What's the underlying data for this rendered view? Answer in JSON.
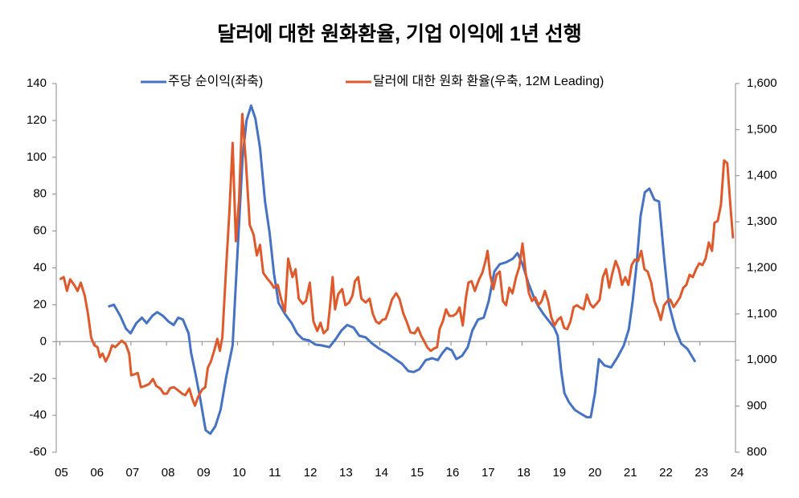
{
  "chart_data": {
    "type": "line",
    "title": "달러에 대한 원화환율, 기업 이익에 1년 선행",
    "xlim": [
      2004.9,
      2024.0
    ],
    "xticks": [
      {
        "value": 2005,
        "label": "05"
      },
      {
        "value": 2006,
        "label": "06"
      },
      {
        "value": 2007,
        "label": "07"
      },
      {
        "value": 2008,
        "label": "08"
      },
      {
        "value": 2009,
        "label": "09"
      },
      {
        "value": 2010,
        "label": "10"
      },
      {
        "value": 2011,
        "label": "11"
      },
      {
        "value": 2012,
        "label": "12"
      },
      {
        "value": 2013,
        "label": "13"
      },
      {
        "value": 2014,
        "label": "14"
      },
      {
        "value": 2015,
        "label": "15"
      },
      {
        "value": 2016,
        "label": "16"
      },
      {
        "value": 2017,
        "label": "17"
      },
      {
        "value": 2018,
        "label": "18"
      },
      {
        "value": 2019,
        "label": "19"
      },
      {
        "value": 2020,
        "label": "20"
      },
      {
        "value": 2021,
        "label": "21"
      },
      {
        "value": 2022,
        "label": "22"
      },
      {
        "value": 2023,
        "label": "23"
      },
      {
        "value": 2024,
        "label": "24"
      }
    ],
    "ylim": [
      -60,
      140
    ],
    "yticks": [
      -60,
      -40,
      -20,
      0,
      20,
      40,
      60,
      80,
      100,
      120,
      140
    ],
    "y2lim": [
      800,
      1600
    ],
    "y2ticks": [
      800,
      900,
      {
        "value": 1000,
        "label": "1,000"
      },
      {
        "value": 1100,
        "label": "1,100"
      },
      {
        "value": 1200,
        "label": "1,200"
      },
      {
        "value": 1300,
        "label": "1,300"
      },
      {
        "value": 1400,
        "label": "1,400"
      },
      {
        "value": 1500,
        "label": "1,500"
      },
      {
        "value": 1600,
        "label": "1,600"
      }
    ],
    "grid": false,
    "legend": "top",
    "series": [
      {
        "name": "주당 순이익(좌축)",
        "color": "#4472c4",
        "axis": "y",
        "x": [
          2006.36,
          2006.52,
          2006.7,
          2006.86,
          2006.99,
          2007.15,
          2007.31,
          2007.44,
          2007.6,
          2007.74,
          2007.9,
          2008.05,
          2008.2,
          2008.33,
          2008.46,
          2008.62,
          2008.69,
          2008.8,
          2008.94,
          2009.1,
          2009.23,
          2009.37,
          2009.52,
          2009.68,
          2009.86,
          2009.98,
          2010.14,
          2010.25,
          2010.38,
          2010.5,
          2010.63,
          2010.77,
          2010.9,
          2011.02,
          2011.15,
          2011.33,
          2011.52,
          2011.67,
          2011.83,
          2012.01,
          2012.19,
          2012.35,
          2012.58,
          2012.76,
          2012.92,
          2013.08,
          2013.26,
          2013.42,
          2013.6,
          2013.78,
          2013.98,
          2014.21,
          2014.43,
          2014.62,
          2014.8,
          2014.95,
          2015.11,
          2015.29,
          2015.47,
          2015.63,
          2015.75,
          2015.88,
          2016.02,
          2016.15,
          2016.31,
          2016.47,
          2016.6,
          2016.76,
          2016.92,
          2017.06,
          2017.22,
          2017.37,
          2017.55,
          2017.74,
          2017.87,
          2018.01,
          2018.17,
          2018.33,
          2018.46,
          2018.6,
          2018.76,
          2018.9,
          2019.0,
          2019.1,
          2019.19,
          2019.32,
          2019.48,
          2019.64,
          2019.82,
          2019.93,
          2020.05,
          2020.16,
          2020.32,
          2020.5,
          2020.68,
          2020.86,
          2021.0,
          2021.11,
          2021.22,
          2021.33,
          2021.45,
          2021.58,
          2021.72,
          2021.85,
          2021.99,
          2022.13,
          2022.31,
          2022.47,
          2022.65,
          2022.87
        ],
        "values": [
          19,
          20,
          14,
          7,
          4.5,
          10,
          13,
          10,
          14,
          16,
          14,
          11,
          9,
          13,
          12,
          4.5,
          -6,
          -16,
          -30,
          -48,
          -50,
          -46,
          -37,
          -19,
          -2,
          42,
          100,
          120,
          128,
          121,
          105,
          76,
          59,
          37,
          21,
          15,
          10,
          4.5,
          1.4,
          0.6,
          -1.6,
          -2,
          -3,
          1.4,
          6,
          9,
          7.6,
          3.2,
          2.3,
          -1,
          -3.8,
          -6.4,
          -9.5,
          -12,
          -16,
          -16.5,
          -15,
          -10,
          -9,
          -10,
          -6.4,
          -3.4,
          -4.7,
          -9.5,
          -7.7,
          -3,
          6,
          12,
          13,
          22,
          38,
          42,
          43,
          45,
          48,
          42,
          32,
          24,
          19,
          15,
          11,
          7.6,
          3.2,
          -16,
          -28,
          -33,
          -37,
          -39,
          -41,
          -41,
          -28,
          -9.5,
          -13,
          -14,
          -8.6,
          -2,
          6.7,
          22,
          42,
          68,
          81,
          83,
          77,
          76,
          46,
          20,
          6.7,
          -1,
          -4,
          -11
        ]
      },
      {
        "name": "달러에 대한 원화 환율(우축, 12M Leading)",
        "color": "#e0592a",
        "axis": "y2",
        "x": [
          2005.0,
          2005.11,
          2005.2,
          2005.29,
          2005.41,
          2005.5,
          2005.59,
          2005.7,
          2005.79,
          2005.88,
          2005.97,
          2006.06,
          2006.13,
          2006.2,
          2006.29,
          2006.38,
          2006.47,
          2006.56,
          2006.65,
          2006.74,
          2006.85,
          2006.95,
          2007.01,
          2007.1,
          2007.19,
          2007.28,
          2007.4,
          2007.51,
          2007.62,
          2007.71,
          2007.83,
          2007.92,
          2008.01,
          2008.1,
          2008.21,
          2008.33,
          2008.44,
          2008.53,
          2008.64,
          2008.73,
          2008.8,
          2008.89,
          2009.0,
          2009.09,
          2009.16,
          2009.25,
          2009.34,
          2009.43,
          2009.5,
          2009.57,
          2009.68,
          2009.77,
          2009.86,
          2009.95,
          2010.04,
          2010.13,
          2010.23,
          2010.34,
          2010.45,
          2010.54,
          2010.63,
          2010.72,
          2010.84,
          2010.93,
          2011.02,
          2011.13,
          2011.22,
          2011.33,
          2011.42,
          2011.54,
          2011.63,
          2011.72,
          2011.83,
          2011.92,
          2012.03,
          2012.13,
          2012.24,
          2012.33,
          2012.42,
          2012.53,
          2012.6,
          2012.67,
          2012.74,
          2012.83,
          2012.94,
          2013.03,
          2013.14,
          2013.23,
          2013.3,
          2013.39,
          2013.48,
          2013.6,
          2013.71,
          2013.8,
          2013.89,
          2013.98,
          2014.07,
          2014.16,
          2014.25,
          2014.34,
          2014.46,
          2014.55,
          2014.66,
          2014.75,
          2014.86,
          2014.98,
          2015.07,
          2015.16,
          2015.25,
          2015.34,
          2015.43,
          2015.52,
          2015.61,
          2015.68,
          2015.77,
          2015.86,
          2015.95,
          2016.06,
          2016.15,
          2016.24,
          2016.33,
          2016.42,
          2016.49,
          2016.58,
          2016.67,
          2016.79,
          2016.88,
          2016.97,
          2017.03,
          2017.1,
          2017.19,
          2017.28,
          2017.37,
          2017.46,
          2017.55,
          2017.64,
          2017.73,
          2017.83,
          2017.92,
          2018.01,
          2018.1,
          2018.19,
          2018.28,
          2018.37,
          2018.46,
          2018.55,
          2018.64,
          2018.73,
          2018.82,
          2018.91,
          2019.0,
          2019.09,
          2019.18,
          2019.27,
          2019.36,
          2019.45,
          2019.54,
          2019.63,
          2019.73,
          2019.82,
          2019.91,
          2020.0,
          2020.09,
          2020.18,
          2020.27,
          2020.36,
          2020.45,
          2020.54,
          2020.63,
          2020.72,
          2020.81,
          2020.9,
          2020.99,
          2021.08,
          2021.17,
          2021.26,
          2021.35,
          2021.44,
          2021.53,
          2021.63,
          2021.72,
          2021.81,
          2021.9,
          2021.99,
          2022.08,
          2022.17,
          2022.26,
          2022.35,
          2022.44,
          2022.53,
          2022.62,
          2022.71,
          2022.8,
          2022.89,
          2022.98,
          2023.07,
          2023.16,
          2023.25,
          2023.34,
          2023.41,
          2023.5,
          2023.59,
          2023.68,
          2023.77,
          2023.86,
          2023.93
        ],
        "values": [
          1175,
          1180,
          1150,
          1175,
          1162,
          1150,
          1168,
          1140,
          1101,
          1049,
          1032,
          1028,
          1006,
          1014,
          997,
          1011,
          1032,
          1028,
          1035,
          1042,
          1035,
          1014,
          967,
          969,
          972,
          941,
          944,
          948,
          959,
          944,
          938,
          927,
          927,
          939,
          941,
          934,
          927,
          924,
          938,
          915,
          901,
          920,
          936,
          941,
          983,
          997,
          1020,
          1046,
          1020,
          1049,
          1206,
          1325,
          1471,
          1258,
          1346,
          1534,
          1433,
          1293,
          1272,
          1227,
          1250,
          1189,
          1176,
          1168,
          1157,
          1163,
          1133,
          1105,
          1220,
          1180,
          1197,
          1133,
          1122,
          1128,
          1168,
          1084,
          1063,
          1081,
          1058,
          1067,
          1119,
          1180,
          1110,
          1143,
          1154,
          1119,
          1125,
          1140,
          1171,
          1180,
          1133,
          1125,
          1133,
          1101,
          1084,
          1079,
          1087,
          1089,
          1108,
          1131,
          1145,
          1133,
          1101,
          1084,
          1060,
          1058,
          1070,
          1053,
          1040,
          1027,
          1020,
          1025,
          1028,
          1067,
          1084,
          1110,
          1096,
          1096,
          1101,
          1114,
          1075,
          1136,
          1168,
          1171,
          1150,
          1175,
          1189,
          1215,
          1237,
          1185,
          1154,
          1185,
          1192,
          1128,
          1119,
          1157,
          1145,
          1180,
          1202,
          1253,
          1189,
          1145,
          1128,
          1136,
          1119,
          1128,
          1150,
          1128,
          1093,
          1075,
          1087,
          1093,
          1070,
          1067,
          1084,
          1115,
          1119,
          1114,
          1110,
          1142,
          1122,
          1114,
          1122,
          1131,
          1180,
          1197,
          1157,
          1189,
          1215,
          1197,
          1163,
          1180,
          1163,
          1206,
          1218,
          1215,
          1237,
          1197,
          1192,
          1168,
          1128,
          1110,
          1087,
          1119,
          1128,
          1131,
          1115,
          1125,
          1136,
          1157,
          1163,
          1185,
          1180,
          1197,
          1210,
          1206,
          1220,
          1255,
          1237,
          1298,
          1302,
          1337,
          1433,
          1427,
          1332,
          1264
        ]
      }
    ]
  }
}
